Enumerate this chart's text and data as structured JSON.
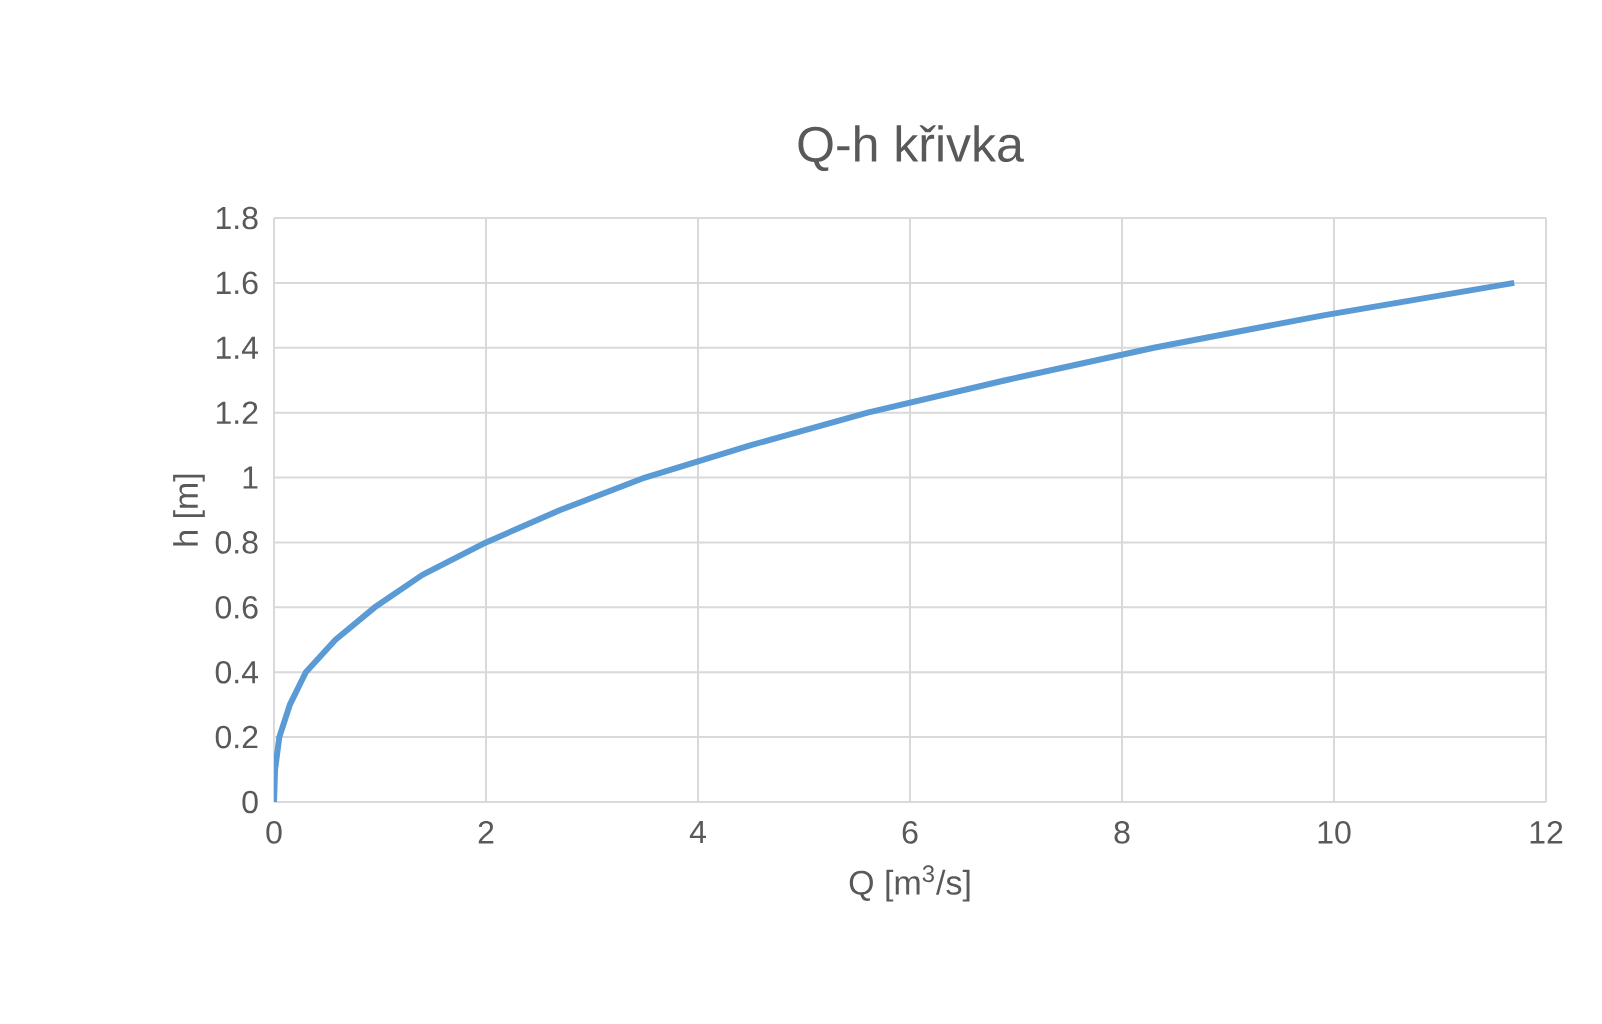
{
  "chart_data": {
    "type": "line",
    "title": "Q-h křivka",
    "xlabel": "Q [m$^{3}$/s]",
    "ylabel": "h [m]",
    "x": [
      0,
      0.01,
      0.05,
      0.15,
      0.3,
      0.58,
      0.95,
      1.4,
      2.0,
      2.7,
      3.5,
      4.5,
      5.6,
      6.9,
      8.3,
      9.9,
      11.7
    ],
    "series": [
      {
        "color": "#5b9bd5",
        "values": [
          0,
          0.1,
          0.2,
          0.3,
          0.4,
          0.5,
          0.6,
          0.7,
          0.8,
          0.9,
          1.0,
          1.1,
          1.2,
          1.3,
          1.4,
          1.5,
          1.6
        ]
      }
    ],
    "xlim": [
      0,
      12
    ],
    "xticks": [
      0,
      2,
      4,
      6,
      8,
      10,
      12
    ],
    "ylim": [
      0,
      1.8
    ],
    "yticks": [
      0,
      0.2,
      0.4,
      0.6,
      0.8,
      1,
      1.2,
      1.4,
      1.6,
      1.8
    ],
    "grid": true,
    "marker": "none",
    "line_style": "solid"
  }
}
